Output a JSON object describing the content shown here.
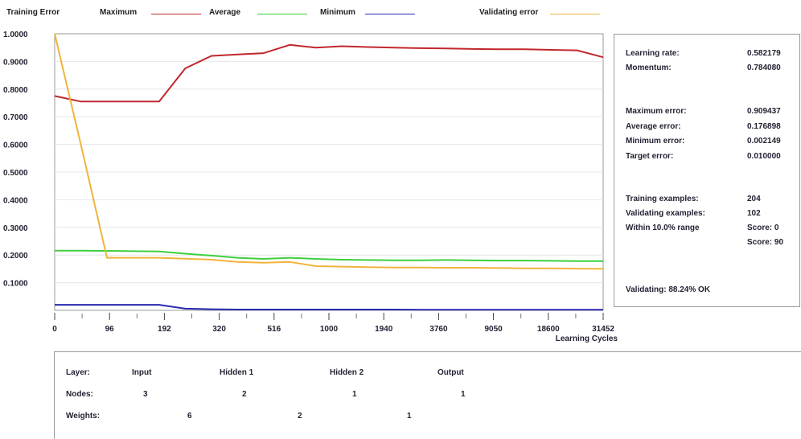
{
  "legend": {
    "title": "Training Error",
    "items": [
      {
        "label": "Maximum",
        "color": "#c1272d"
      },
      {
        "label": "Average",
        "color": "#3ecf3e"
      },
      {
        "label": "Minimum",
        "color": "#2a2ab0"
      },
      {
        "label": "Validating error",
        "color": "#f0b43c"
      }
    ]
  },
  "chart_data": {
    "type": "line",
    "xlabel": "Learning Cycles",
    "ylabel": "",
    "ylim": [
      0,
      1
    ],
    "y_ticks": [
      "1.0000",
      "0.9000",
      "0.8000",
      "0.7000",
      "0.6000",
      "0.5000",
      "0.4000",
      "0.3000",
      "0.2000",
      "0.1000"
    ],
    "x_tick_labels": [
      "0",
      "96",
      "192",
      "320",
      "516",
      "1000",
      "1940",
      "3760",
      "9050",
      "18600",
      "31452"
    ],
    "grid": true,
    "x": [
      "0",
      "48",
      "96",
      "144",
      "176",
      "192",
      "208",
      "256",
      "320",
      "400",
      "516",
      "700",
      "1000",
      "1400",
      "1940",
      "2700",
      "3760",
      "6000",
      "9050",
      "13000",
      "18600",
      "31452"
    ],
    "series": [
      {
        "name": "Maximum",
        "color": "#c1272d",
        "values": [
          0.775,
          0.755,
          0.755,
          0.755,
          0.755,
          0.875,
          0.92,
          0.925,
          0.93,
          0.96,
          0.95,
          0.955,
          0.952,
          0.95,
          0.948,
          0.947,
          0.945,
          0.944,
          0.944,
          0.942,
          0.94,
          0.915
        ]
      },
      {
        "name": "Average",
        "color": "#3ecf3e",
        "values": [
          0.216,
          0.216,
          0.215,
          0.214,
          0.213,
          0.205,
          0.198,
          0.19,
          0.186,
          0.19,
          0.186,
          0.183,
          0.182,
          0.181,
          0.181,
          0.182,
          0.181,
          0.18,
          0.18,
          0.179,
          0.178,
          0.178
        ]
      },
      {
        "name": "Minimum",
        "color": "#2a2ab0",
        "values": [
          0.02,
          0.02,
          0.02,
          0.02,
          0.02,
          0.006,
          0.004,
          0.003,
          0.003,
          0.003,
          0.003,
          0.003,
          0.003,
          0.003,
          0.002,
          0.002,
          0.002,
          0.002,
          0.002,
          0.002,
          0.002,
          0.002
        ]
      },
      {
        "name": "Validating error",
        "color": "#f0b43c",
        "values": [
          1.0,
          0.6,
          0.19,
          0.19,
          0.19,
          0.187,
          0.183,
          0.175,
          0.172,
          0.175,
          0.16,
          0.158,
          0.156,
          0.155,
          0.155,
          0.154,
          0.154,
          0.153,
          0.152,
          0.152,
          0.151,
          0.15
        ]
      }
    ]
  },
  "stats": [
    {
      "label": "Learning rate:",
      "value": "0.582179"
    },
    {
      "label": "Momentum:",
      "value": "0.784080"
    },
    {
      "label": "Maximum error:",
      "value": "0.909437"
    },
    {
      "label": "Average error:",
      "value": "0.176898"
    },
    {
      "label": "Minimum error:",
      "value": "0.002149"
    },
    {
      "label": "Target error:",
      "value": "0.010000"
    },
    {
      "label": "Training examples:",
      "value": "204"
    },
    {
      "label": "Validating examples:",
      "value": "102"
    },
    {
      "label": "Within 10.0% range",
      "value": "Score: 0"
    },
    {
      "label": "",
      "value": "Score: 90"
    },
    {
      "label": "Validating: 88.24% OK",
      "value": ""
    }
  ],
  "layers": {
    "layer_label": "Layer:",
    "nodes_label": "Nodes:",
    "weights_label": "Weights:",
    "names": [
      "Input",
      "Hidden 1",
      "Hidden 2",
      "Output"
    ],
    "nodes": [
      "3",
      "2",
      "1",
      "1"
    ],
    "weights": [
      "6",
      "2",
      "1"
    ]
  }
}
